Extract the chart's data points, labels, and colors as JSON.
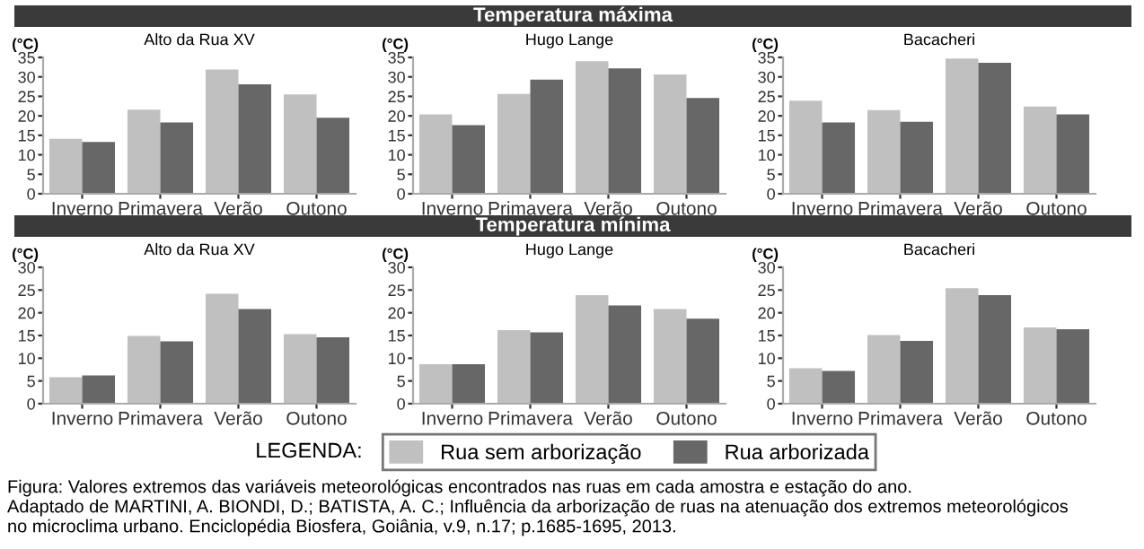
{
  "chart_data": [
    {
      "type": "other",
      "title": "Temperatura máxima"
    },
    {
      "type": "bar",
      "title": "Alto da Rua XV",
      "ylabel": "(°C)",
      "categories": [
        "Inverno",
        "Primavera",
        "Verão",
        "Outono"
      ],
      "ylim": [
        0,
        35
      ],
      "yticks": [
        0,
        5,
        10,
        15,
        20,
        25,
        30,
        35
      ],
      "grid": false,
      "legend": "bottom",
      "legend_title": "LEGENDA:",
      "series": [
        {
          "name": "Rua sem arborização",
          "color": "#c0c0c0",
          "values": [
            14.1,
            21.6,
            31.9,
            25.5
          ]
        },
        {
          "name": "Rua arborizada",
          "color": "#676767",
          "values": [
            13.3,
            18.3,
            28.1,
            19.5
          ]
        }
      ]
    },
    {
      "type": "bar",
      "title": "Hugo Lange",
      "ylabel": "(°C)",
      "categories": [
        "Inverno",
        "Primavera",
        "Verão",
        "Outono"
      ],
      "ylim": [
        0,
        35
      ],
      "yticks": [
        0,
        5,
        10,
        15,
        20,
        25,
        30,
        35
      ],
      "grid": false,
      "series": [
        {
          "color": "#c0c0c0",
          "values": [
            20.4,
            25.6,
            34.0,
            30.6
          ]
        },
        {
          "color": "#676767",
          "values": [
            17.6,
            29.3,
            32.2,
            24.6
          ]
        }
      ]
    },
    {
      "type": "bar",
      "title": "Bacacheri",
      "ylabel": "(°C)",
      "categories": [
        "Inverno",
        "Primavera",
        "Verão",
        "Outono"
      ],
      "ylim": [
        0,
        35
      ],
      "yticks": [
        0,
        5,
        10,
        15,
        20,
        25,
        30,
        35
      ],
      "grid": false,
      "series": [
        {
          "color": "#c0c0c0",
          "values": [
            23.9,
            21.5,
            34.7,
            22.4
          ]
        },
        {
          "color": "#676767",
          "values": [
            18.3,
            18.5,
            33.6,
            20.4
          ]
        }
      ]
    },
    {
      "type": "other",
      "title": "Temperatura mínima"
    },
    {
      "type": "bar",
      "title": "Alto da Rua XV",
      "ylabel": "(°C)",
      "categories": [
        "Inverno",
        "Primavera",
        "Verão",
        "Outono"
      ],
      "ylim": [
        0,
        30
      ],
      "yticks": [
        0,
        5,
        10,
        15,
        20,
        25,
        30
      ],
      "grid": false,
      "series": [
        {
          "color": "#c0c0c0",
          "values": [
            5.8,
            14.9,
            24.2,
            15.3
          ]
        },
        {
          "color": "#676767",
          "values": [
            6.2,
            13.7,
            20.8,
            14.6
          ]
        }
      ]
    },
    {
      "type": "bar",
      "title": "Hugo Lange",
      "ylabel": "(°C)",
      "categories": [
        "Inverno",
        "Primavera",
        "Verão",
        "Outono"
      ],
      "ylim": [
        0,
        30
      ],
      "yticks": [
        0,
        5,
        10,
        15,
        20,
        25,
        30
      ],
      "grid": false,
      "series": [
        {
          "color": "#c0c0c0",
          "values": [
            8.7,
            16.2,
            23.9,
            20.8
          ]
        },
        {
          "color": "#676767",
          "values": [
            8.7,
            15.7,
            21.6,
            18.7
          ]
        }
      ]
    },
    {
      "type": "bar",
      "title": "Bacacheri",
      "ylabel": "(°C)",
      "categories": [
        "Inverno",
        "Primavera",
        "Verão",
        "Outono"
      ],
      "ylim": [
        0,
        30
      ],
      "yticks": [
        0,
        5,
        10,
        15,
        20,
        25,
        30
      ],
      "grid": false,
      "series": [
        {
          "color": "#c0c0c0",
          "values": [
            7.8,
            15.1,
            25.4,
            16.8
          ]
        },
        {
          "color": "#676767",
          "values": [
            7.2,
            13.8,
            23.9,
            16.4
          ]
        }
      ]
    },
    {
      "type": "other",
      "annotations": [
        "Figura: Valores extremos das variáveis meteorológicas encontrados nas ruas em cada amostra e estação do ano.",
        "Adaptado de MARTINI, A. BIONDI, D.; BATISTA, A. C.; Influência da arborização de ruas na atenuação dos extremos meteorológicos",
        "no microclima urbano. Enciclopédia Biosfera, Goiânia, v.9, n.17; p.1685-1695, 2013."
      ]
    }
  ]
}
